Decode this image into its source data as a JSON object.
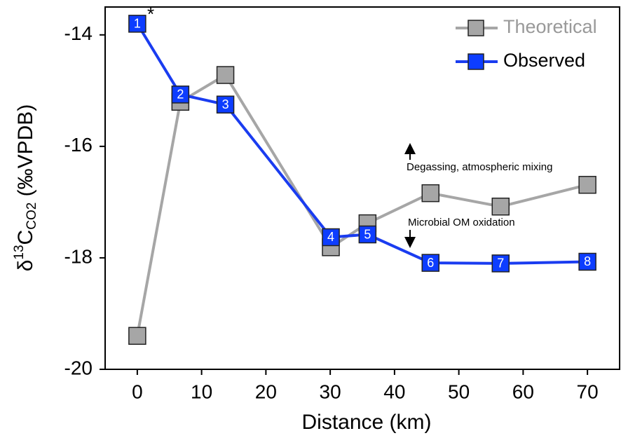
{
  "chart_data": {
    "type": "line",
    "xlabel": "Distance (km)",
    "ylabel_parts": [
      "δ",
      "13",
      "C",
      "CO2",
      " (‰VPDB)"
    ],
    "xlim": [
      -5,
      75
    ],
    "ylim": [
      -20,
      -13.5
    ],
    "xticks": [
      0,
      10,
      20,
      30,
      40,
      50,
      60,
      70
    ],
    "yticks": [
      -20,
      -18,
      -16,
      -14
    ],
    "grid": false,
    "legend": "upper right",
    "series": [
      {
        "name": "Theoretical",
        "color": "#a6a6a6",
        "marker_color": "#a6a6a6",
        "x": [
          0,
          6.7,
          13.7,
          30.1,
          35.8,
          45.6,
          56.5,
          70
        ],
        "values": [
          -19.4,
          -15.2,
          -14.72,
          -17.81,
          -17.38,
          -16.84,
          -17.08,
          -16.69
        ]
      },
      {
        "name": "Observed",
        "color": "#1a3cf0",
        "marker_color": "#0d3dff",
        "x": [
          0,
          6.7,
          13.7,
          30.1,
          35.8,
          45.6,
          56.5,
          70
        ],
        "values": [
          -13.8,
          -15.07,
          -15.25,
          -17.63,
          -17.58,
          -18.09,
          -18.1,
          -18.07
        ],
        "point_labels": [
          "1",
          "2",
          "3",
          "4",
          "5",
          "6",
          "7",
          "8"
        ]
      }
    ],
    "annotations": [
      "*",
      "Degassing, atmospheric mixing",
      "Microbial OM oxidation"
    ]
  }
}
